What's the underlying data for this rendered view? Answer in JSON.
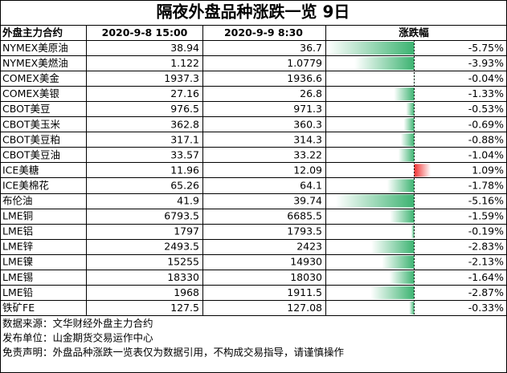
{
  "title": "隔夜外盘品种涨跌一览 9日",
  "table": {
    "headers": [
      "外盘主力合约",
      "2020-9-8 15:00",
      "2020-9-9 8:30",
      "涨跌幅"
    ],
    "rows": [
      {
        "name": "NYMEX美原油",
        "prev": "38.94",
        "curr": "36.7",
        "change": -5.75,
        "change_label": "-5.75%"
      },
      {
        "name": "NYMEX美燃油",
        "prev": "1.122",
        "curr": "1.0779",
        "change": -3.93,
        "change_label": "-3.93%"
      },
      {
        "name": "COMEX美金",
        "prev": "1937.3",
        "curr": "1936.6",
        "change": -0.04,
        "change_label": "-0.04%"
      },
      {
        "name": "COMEX美银",
        "prev": "27.16",
        "curr": "26.8",
        "change": -1.33,
        "change_label": "-1.33%"
      },
      {
        "name": "CBOT美豆",
        "prev": "976.5",
        "curr": "971.3",
        "change": -0.53,
        "change_label": "-0.53%"
      },
      {
        "name": "CBOT美玉米",
        "prev": "362.8",
        "curr": "360.3",
        "change": -0.69,
        "change_label": "-0.69%"
      },
      {
        "name": "CBOT美豆粕",
        "prev": "317.1",
        "curr": "314.3",
        "change": -0.88,
        "change_label": "-0.88%"
      },
      {
        "name": "CBOT美豆油",
        "prev": "33.57",
        "curr": "33.22",
        "change": -1.04,
        "change_label": "-1.04%"
      },
      {
        "name": "ICE美糖",
        "prev": "11.96",
        "curr": "12.09",
        "change": 1.09,
        "change_label": "1.09%"
      },
      {
        "name": "ICE美棉花",
        "prev": "65.26",
        "curr": "64.1",
        "change": -1.78,
        "change_label": "-1.78%"
      },
      {
        "name": "布伦油",
        "prev": "41.9",
        "curr": "39.74",
        "change": -5.16,
        "change_label": "-5.16%"
      },
      {
        "name": "LME铜",
        "prev": "6793.5",
        "curr": "6685.5",
        "change": -1.59,
        "change_label": "-1.59%"
      },
      {
        "name": "LME铝",
        "prev": "1797",
        "curr": "1793.5",
        "change": -0.19,
        "change_label": "-0.19%"
      },
      {
        "name": "LME锌",
        "prev": "2493.5",
        "curr": "2423",
        "change": -2.83,
        "change_label": "-2.83%"
      },
      {
        "name": "LME镍",
        "prev": "15255",
        "curr": "14930",
        "change": -2.13,
        "change_label": "-2.13%"
      },
      {
        "name": "LME锡",
        "prev": "18330",
        "curr": "18030",
        "change": -1.64,
        "change_label": "-1.64%"
      },
      {
        "name": "LME铅",
        "prev": "1968",
        "curr": "1911.5",
        "change": -2.87,
        "change_label": "-2.87%"
      },
      {
        "name": "铁矿FE",
        "prev": "127.5",
        "curr": "127.08",
        "change": -0.33,
        "change_label": "-0.33%"
      }
    ]
  },
  "footer": [
    "数据来源：文华财经外盘主力合约",
    "发布单位：山金期货交易运作中心",
    "免责声明：外盘品种涨跌一览表仅为数据引用，不构成交易指导，请谨慎操作"
  ]
}
